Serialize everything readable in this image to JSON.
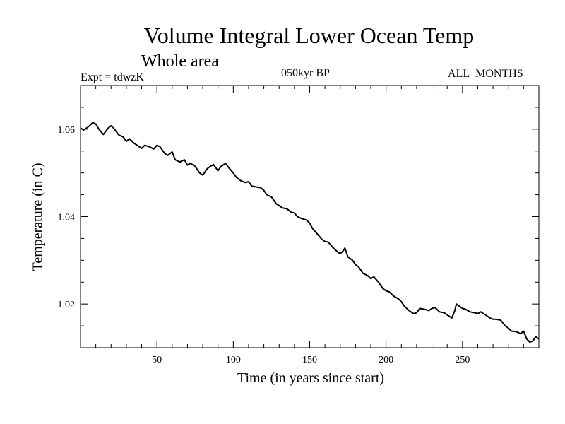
{
  "chart_data": {
    "type": "line",
    "title": "Volume Integral Lower Ocean Temp",
    "subtitle": "Whole area",
    "annotations": {
      "left": "Expt = tdwzK",
      "center": "050kyr BP",
      "right": "ALL_MONTHS"
    },
    "xlabel": "Time (in years since start)",
    "ylabel": "Temperature (in C)",
    "xlim": [
      0,
      300
    ],
    "ylim": [
      1.01,
      1.07
    ],
    "xticks": [
      50,
      100,
      150,
      200,
      250
    ],
    "xtick_labels": [
      "50",
      "100",
      "150",
      "200",
      "250"
    ],
    "yticks": [
      1.02,
      1.04,
      1.06
    ],
    "ytick_labels": [
      "1.02",
      "1.04",
      "1.06"
    ],
    "grid": false,
    "series": [
      {
        "x": [
          0,
          2,
          5,
          8,
          10,
          12,
          15,
          18,
          20,
          22,
          25,
          28,
          30,
          32,
          35,
          38,
          40,
          42,
          45,
          48,
          50,
          52,
          55,
          57,
          60,
          62,
          65,
          68,
          70,
          72,
          75,
          78,
          80,
          83,
          85,
          87,
          90,
          92,
          95,
          97,
          100,
          102,
          105,
          108,
          110,
          112,
          115,
          118,
          120,
          122,
          125,
          128,
          130,
          132,
          135,
          138,
          140,
          142,
          145,
          148,
          150,
          152,
          155,
          158,
          160,
          162,
          165,
          168,
          170,
          172,
          173,
          175,
          178,
          180,
          182,
          185,
          188,
          190,
          192,
          195,
          198,
          200,
          202,
          205,
          208,
          210,
          212,
          215,
          218,
          220,
          222,
          225,
          228,
          230,
          232,
          235,
          238,
          240,
          243,
          245,
          246,
          248,
          250,
          252,
          255,
          258,
          260,
          262,
          265,
          268,
          270,
          272,
          275,
          278,
          280,
          282,
          285,
          288,
          290,
          292,
          294,
          296,
          298,
          300
        ],
        "y": [
          1.0603,
          1.0598,
          1.0605,
          1.0615,
          1.0612,
          1.06,
          1.0588,
          1.0602,
          1.0608,
          1.0601,
          1.0587,
          1.0582,
          1.0572,
          1.0578,
          1.0568,
          1.0561,
          1.0556,
          1.0563,
          1.056,
          1.0555,
          1.0563,
          1.056,
          1.0545,
          1.054,
          1.0548,
          1.053,
          1.0525,
          1.053,
          1.0518,
          1.0522,
          1.0515,
          1.05,
          1.0495,
          1.051,
          1.0515,
          1.0519,
          1.0505,
          1.0515,
          1.0522,
          1.0512,
          1.05,
          1.049,
          1.0482,
          1.0478,
          1.048,
          1.047,
          1.0468,
          1.0466,
          1.046,
          1.045,
          1.0445,
          1.043,
          1.0425,
          1.042,
          1.0418,
          1.041,
          1.0408,
          1.04,
          1.0395,
          1.0392,
          1.0385,
          1.0372,
          1.036,
          1.0348,
          1.0343,
          1.0342,
          1.033,
          1.032,
          1.0315,
          1.0322,
          1.0328,
          1.0308,
          1.03,
          1.029,
          1.0285,
          1.027,
          1.0265,
          1.0258,
          1.0262,
          1.025,
          1.0235,
          1.023,
          1.0228,
          1.0218,
          1.0212,
          1.0205,
          1.0195,
          1.0185,
          1.0178,
          1.018,
          1.019,
          1.0188,
          1.0185,
          1.019,
          1.0192,
          1.0182,
          1.018,
          1.0175,
          1.0168,
          1.0185,
          1.02,
          1.0195,
          1.019,
          1.0188,
          1.0182,
          1.018,
          1.0178,
          1.0182,
          1.0175,
          1.0168,
          1.0165,
          1.0165,
          1.0163,
          1.015,
          1.0145,
          1.0138,
          1.0137,
          1.0132,
          1.0138,
          1.012,
          1.0113,
          1.0115,
          1.0125,
          1.012
        ]
      }
    ]
  }
}
